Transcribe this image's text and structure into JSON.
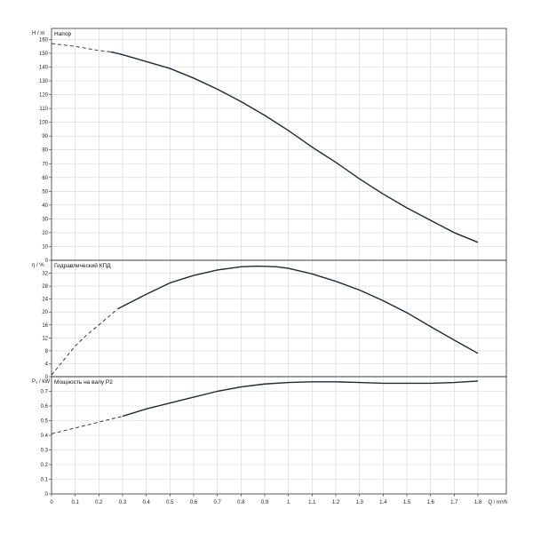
{
  "chart_data": [
    {
      "type": "line",
      "title": "Напор",
      "ylabel": "H / m",
      "xlabel": "Q / m³/h",
      "xlim": [
        0,
        1.92
      ],
      "ylim": [
        0,
        168
      ],
      "xticks": [
        "0",
        "0.1",
        "0.2",
        "0.3",
        "0.4",
        "0.5",
        "0.6",
        "0.7",
        "0.8",
        "0.9",
        "1",
        "1.1",
        "1.2",
        "1.3",
        "1.4",
        "1.5",
        "1.6",
        "1.7",
        "1.8"
      ],
      "yticks": [
        "0",
        "10",
        "20",
        "30",
        "40",
        "50",
        "60",
        "70",
        "80",
        "90",
        "100",
        "110",
        "120",
        "130",
        "140",
        "150",
        "160"
      ],
      "grid": true,
      "series": [
        {
          "dashed_until": 0.25,
          "x": [
            0,
            0.1,
            0.2,
            0.25,
            0.3,
            0.4,
            0.5,
            0.6,
            0.7,
            0.8,
            0.9,
            1.0,
            1.1,
            1.2,
            1.3,
            1.4,
            1.5,
            1.6,
            1.7,
            1.8
          ],
          "values": [
            157,
            155,
            152,
            151,
            149,
            144,
            139,
            132,
            124,
            115,
            105,
            94,
            82,
            71,
            59,
            48,
            38,
            29,
            20,
            13
          ]
        }
      ]
    },
    {
      "type": "line",
      "title": "Гидравлический КПД",
      "ylabel": "η / %",
      "xlabel": "Q / m³/h",
      "xlim": [
        0,
        1.92
      ],
      "ylim": [
        0,
        36
      ],
      "xticks": [
        "0",
        "0.1",
        "0.2",
        "0.3",
        "0.4",
        "0.5",
        "0.6",
        "0.7",
        "0.8",
        "0.9",
        "1",
        "1.1",
        "1.2",
        "1.3",
        "1.4",
        "1.5",
        "1.6",
        "1.7",
        "1.8"
      ],
      "yticks": [
        "0",
        "4",
        "8",
        "12",
        "16",
        "20",
        "24",
        "28",
        "32"
      ],
      "grid": true,
      "series": [
        {
          "dashed_until": 0.28,
          "x": [
            0,
            0.05,
            0.1,
            0.15,
            0.2,
            0.28,
            0.4,
            0.5,
            0.6,
            0.7,
            0.8,
            0.87,
            0.95,
            1.0,
            1.1,
            1.2,
            1.3,
            1.4,
            1.5,
            1.6,
            1.7,
            1.8
          ],
          "values": [
            0.5,
            5,
            9.5,
            13,
            16,
            21,
            25.5,
            29,
            31.3,
            33,
            34,
            34.2,
            34,
            33.5,
            31.8,
            29.5,
            26.8,
            23.5,
            19.8,
            15.5,
            11.3,
            7.2
          ]
        }
      ]
    },
    {
      "type": "line",
      "title": "Мощность на валу P2",
      "ylabel": "P₂ / kW",
      "xlabel": "Q / m³/h",
      "xlim": [
        0,
        1.92
      ],
      "ylim": [
        0,
        0.8
      ],
      "xticks": [
        "0",
        "0.1",
        "0.2",
        "0.3",
        "0.4",
        "0.5",
        "0.6",
        "0.7",
        "0.8",
        "0.9",
        "1",
        "1.1",
        "1.2",
        "1.3",
        "1.4",
        "1.5",
        "1.6",
        "1.7",
        "1.8"
      ],
      "yticks": [
        "0",
        "0.1",
        "0.2",
        "0.3",
        "0.4",
        "0.5",
        "0.6",
        "0.7"
      ],
      "grid": true,
      "series": [
        {
          "dashed_until": 0.3,
          "x": [
            0,
            0.1,
            0.2,
            0.3,
            0.4,
            0.5,
            0.6,
            0.7,
            0.8,
            0.9,
            1.0,
            1.1,
            1.2,
            1.3,
            1.4,
            1.5,
            1.6,
            1.7,
            1.8
          ],
          "values": [
            0.41,
            0.45,
            0.49,
            0.53,
            0.58,
            0.62,
            0.66,
            0.7,
            0.73,
            0.75,
            0.76,
            0.765,
            0.765,
            0.76,
            0.755,
            0.755,
            0.755,
            0.76,
            0.77
          ]
        }
      ]
    }
  ],
  "colors": {
    "curve": "#1b2a3c",
    "grid": "#d4d4d4",
    "frame": "#333333"
  }
}
